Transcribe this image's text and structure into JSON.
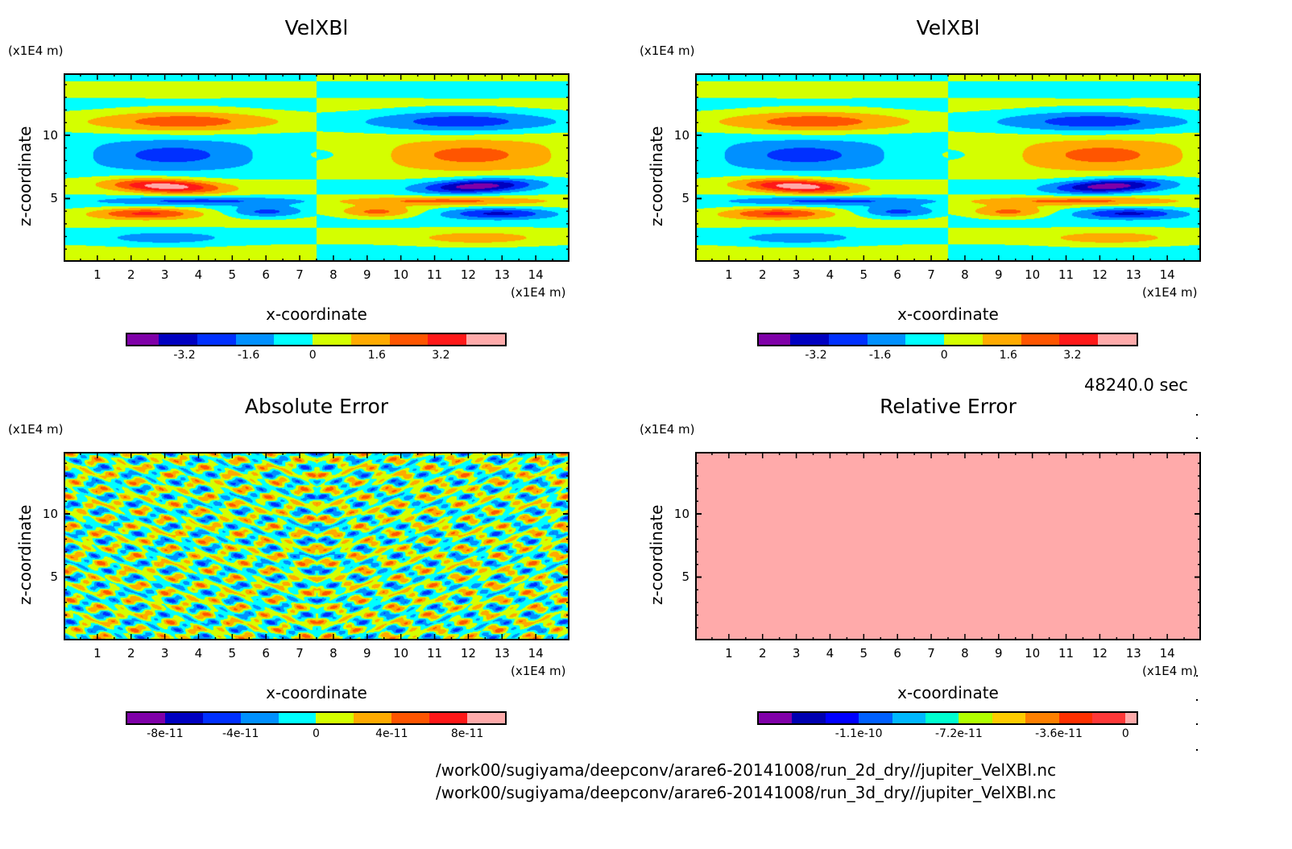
{
  "time_label": "48240.0 sec",
  "file_paths": [
    "/work00/sugiyama/deepconv/arare6-20141008/run_2d_dry//jupiter_VelXBl.nc",
    "/work00/sugiyama/deepconv/arare6-20141008/run_3d_dry//jupiter_VelXBl.nc"
  ],
  "chart_data": [
    {
      "type": "heatmap",
      "title": "VelXBl",
      "xlabel": "x-coordinate",
      "ylabel": "z-coordinate",
      "x_unit": "(x1E4 m)",
      "y_unit": "(x1E4 m)",
      "xlim": [
        0,
        15
      ],
      "ylim": [
        0,
        14.9
      ],
      "xticks": [
        1,
        2,
        3,
        4,
        5,
        6,
        7,
        8,
        9,
        10,
        11,
        12,
        13,
        14
      ],
      "yticks": [
        5,
        10
      ],
      "field": "velocity",
      "colorbar": {
        "colors": [
          "#7f00a8",
          "#0000c0",
          "#0030ff",
          "#0090ff",
          "#00ffff",
          "#d4ff00",
          "#ffaa00",
          "#ff5500",
          "#ff1818",
          "#ffaaaa"
        ],
        "tick_labels": [
          "-3.2",
          "-1.6",
          "0",
          "1.6",
          "3.2"
        ],
        "tick_values": [
          -3.2,
          -1.6,
          0,
          1.6,
          3.2
        ],
        "range": [
          -4.8,
          4.8
        ],
        "first_box_narrow": true
      }
    },
    {
      "type": "heatmap",
      "title": "VelXBl",
      "xlabel": "x-coordinate",
      "ylabel": "z-coordinate",
      "x_unit": "(x1E4 m)",
      "y_unit": "(x1E4 m)",
      "xlim": [
        0,
        15
      ],
      "ylim": [
        0,
        14.9
      ],
      "xticks": [
        1,
        2,
        3,
        4,
        5,
        6,
        7,
        8,
        9,
        10,
        11,
        12,
        13,
        14
      ],
      "yticks": [
        5,
        10
      ],
      "field": "velocity",
      "colorbar": {
        "colors": [
          "#7f00a8",
          "#0000c0",
          "#0030ff",
          "#0090ff",
          "#00ffff",
          "#d4ff00",
          "#ffaa00",
          "#ff5500",
          "#ff1818",
          "#ffaaaa"
        ],
        "tick_labels": [
          "-3.2",
          "-1.6",
          "0",
          "1.6",
          "3.2"
        ],
        "tick_values": [
          -3.2,
          -1.6,
          0,
          1.6,
          3.2
        ],
        "range": [
          -4.8,
          4.8
        ],
        "first_box_narrow": true
      }
    },
    {
      "type": "heatmap",
      "title": "Absolute Error",
      "xlabel": "x-coordinate",
      "ylabel": "z-coordinate",
      "x_unit": "(x1E4 m)",
      "y_unit": "(x1E4 m)",
      "xlim": [
        0,
        15
      ],
      "ylim": [
        0,
        14.9
      ],
      "xticks": [
        1,
        2,
        3,
        4,
        5,
        6,
        7,
        8,
        9,
        10,
        11,
        12,
        13,
        14
      ],
      "yticks": [
        5,
        10
      ],
      "field": "abs_error",
      "colorbar": {
        "colors": [
          "#7f00a8",
          "#0000c0",
          "#0030ff",
          "#0090ff",
          "#00ffff",
          "#d4ff00",
          "#ffaa00",
          "#ff5500",
          "#ff1818",
          "#ffaaaa"
        ],
        "tick_labels": [
          "-8e-11",
          "-4e-11",
          "0",
          "4e-11",
          "8e-11"
        ],
        "tick_values": [
          -8e-11,
          -4e-11,
          0,
          4e-11,
          8e-11
        ],
        "range": [
          -1e-10,
          1e-10
        ],
        "first_box_narrow": false
      }
    },
    {
      "type": "heatmap",
      "title": "Relative Error",
      "xlabel": "x-coordinate",
      "ylabel": "z-coordinate",
      "x_unit": "(x1E4 m)",
      "y_unit": "(x1E4 m)",
      "xlim": [
        0,
        15
      ],
      "ylim": [
        0,
        14.9
      ],
      "xticks": [
        1,
        2,
        3,
        4,
        5,
        6,
        7,
        8,
        9,
        10,
        11,
        12,
        13,
        14
      ],
      "yticks": [
        5,
        10
      ],
      "field": "rel_error",
      "colorbar": {
        "colors": [
          "#8000a8",
          "#0000b0",
          "#0000ff",
          "#0060ff",
          "#00b8ff",
          "#00ffd0",
          "#b0ff00",
          "#ffcc00",
          "#ff8000",
          "#ff3000",
          "#ff3838",
          "#ffaaaa"
        ],
        "tick_labels": [
          "-1.1e-10",
          "-7.2e-11",
          "-3.6e-11",
          "0"
        ],
        "tick_values": [
          -1.08e-10,
          -7.2e-11,
          -3.6e-11,
          0
        ],
        "range": [
          -1.44e-10,
          0
        ],
        "last_box_narrow": true
      }
    }
  ]
}
